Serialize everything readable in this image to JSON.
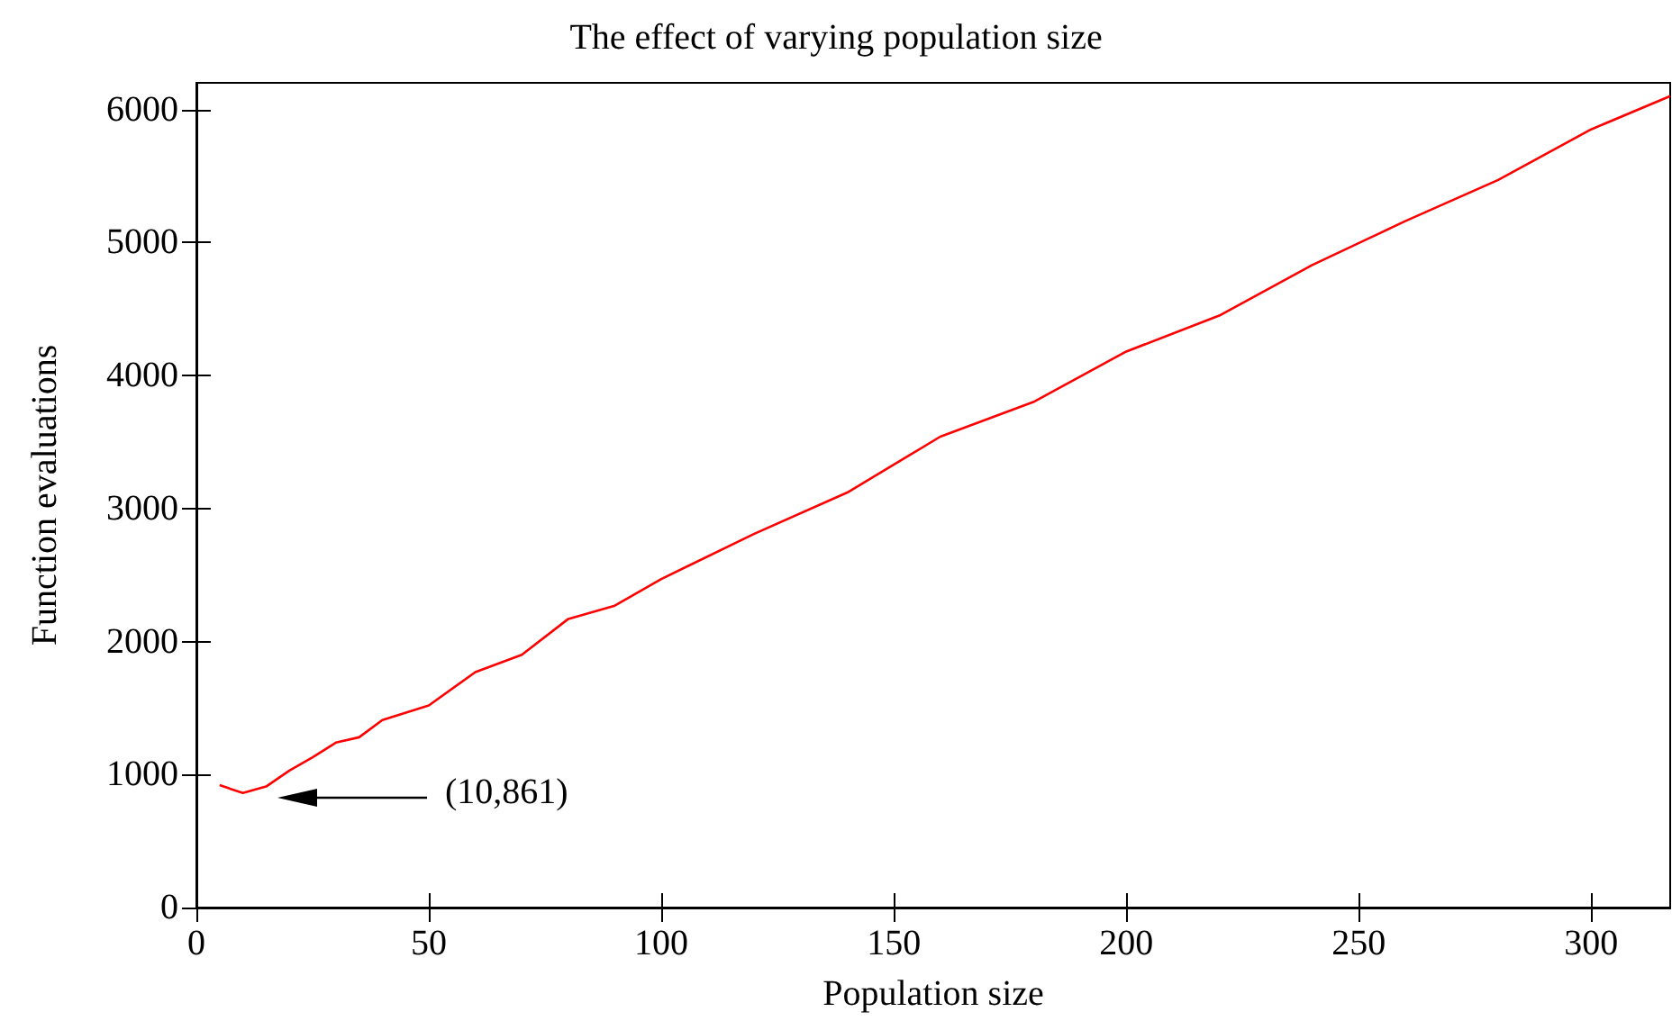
{
  "chart_data": {
    "type": "line",
    "title": "The effect of varying population size",
    "xlabel": "Population size",
    "ylabel": "Function evaluations",
    "x": [
      5,
      10,
      15,
      20,
      25,
      30,
      35,
      40,
      50,
      60,
      70,
      80,
      90,
      100,
      120,
      140,
      160,
      180,
      200,
      220,
      240,
      260,
      280,
      300,
      317
    ],
    "series": [
      {
        "color": "#ff0000",
        "values": [
          920,
          861,
          910,
          1030,
          1130,
          1240,
          1280,
          1410,
          1520,
          1770,
          1900,
          2170,
          2270,
          2470,
          2810,
          3120,
          3540,
          3800,
          4180,
          4450,
          4830,
          5160,
          5470,
          5850,
          6100
        ]
      }
    ],
    "xlim": [
      0,
      317
    ],
    "xticks": [
      0,
      50,
      100,
      150,
      200,
      250,
      300
    ],
    "ylim": [
      0,
      6200
    ],
    "yticks": [
      0,
      1000,
      2000,
      3000,
      4000,
      5000,
      6000
    ],
    "grid": false,
    "marker": "none",
    "line_style": "solid",
    "annotations": [
      "(10,861)"
    ]
  }
}
